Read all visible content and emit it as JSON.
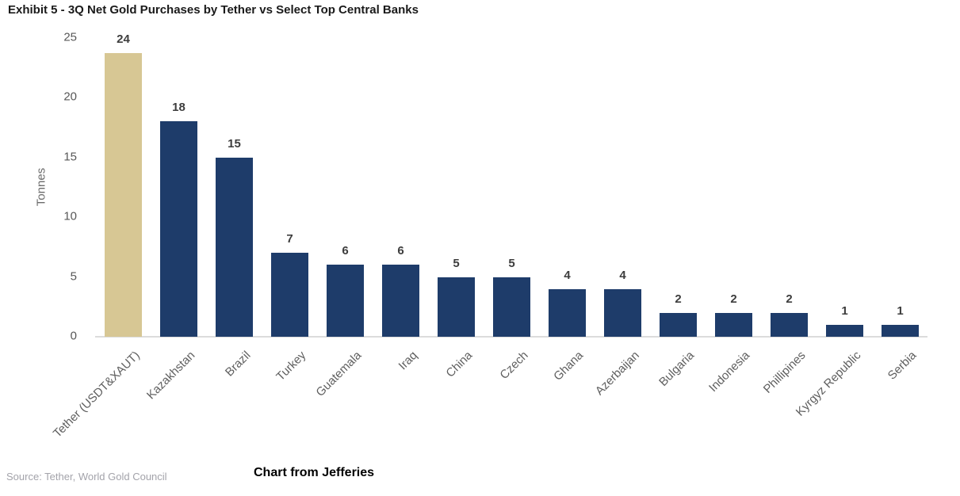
{
  "page": {
    "title": "Exhibit 5 - 3Q Net Gold Purchases by Tether vs Select Top Central Banks",
    "source_note": "Source: Tether, World Gold Council",
    "caption": "Chart from Jefferies"
  },
  "chart_data": {
    "type": "bar",
    "title": "Exhibit 5 - 3Q Net Gold Purchases by Tether vs Select Top Central Banks",
    "xlabel": "",
    "ylabel": "Tonnes",
    "ylim": [
      0,
      25
    ],
    "yticks": [
      0,
      5,
      10,
      15,
      20,
      25
    ],
    "grid": false,
    "legend": false,
    "categories": [
      "Tether (USDT&XAUT)",
      "Kazakhstan",
      "Brazil",
      "Turkey",
      "Guatemala",
      "Iraq",
      "China",
      "Czech",
      "Ghana",
      "Azerbaijan",
      "Bulgaria",
      "Indonesia",
      "Phillipines",
      "Kyrgyz Republic",
      "Serbia"
    ],
    "values": [
      24,
      18,
      15,
      7,
      6,
      6,
      5,
      5,
      4,
      4,
      2,
      2,
      2,
      1,
      1
    ],
    "drawn_values": [
      23.7,
      18,
      15,
      7,
      6,
      6,
      5,
      5,
      4,
      4,
      2,
      2,
      2,
      1,
      1
    ],
    "highlight_index": 0,
    "colors": {
      "highlight_bar": "#D7C794",
      "default_bar": "#1E3C6A",
      "value_label": "#3d3d3d",
      "axis_line": "#dcdcdc",
      "tick_text": "#575757"
    }
  }
}
